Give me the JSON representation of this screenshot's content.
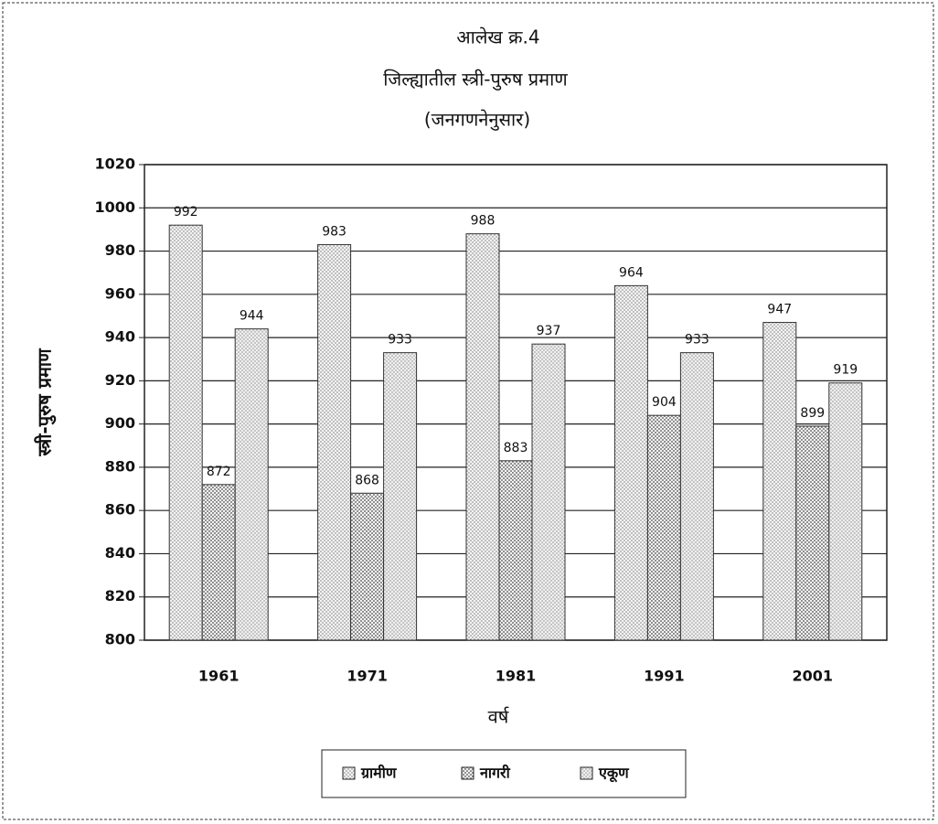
{
  "chart_data": {
    "type": "bar",
    "title": "आलेख क्र.4",
    "subtitle": "जिल्ह्यातील स्त्री-पुरुष प्रमाण",
    "note": "(जनगणनेनुसार)",
    "x_label": "वर्ष",
    "y_label": "स्त्री-पुरुष प्रमाण",
    "categories": [
      "1961",
      "1971",
      "1981",
      "1991",
      "2001"
    ],
    "series": [
      {
        "name": "ग्रामीण",
        "color": "#9a9a9a",
        "values": [
          992,
          983,
          988,
          964,
          947
        ]
      },
      {
        "name": "नागरी",
        "color": "#7d7d7d",
        "values": [
          872,
          868,
          883,
          904,
          899
        ]
      },
      {
        "name": "एकूण",
        "color": "#c4c4c4",
        "values": [
          944,
          933,
          937,
          933,
          919
        ]
      }
    ],
    "ylim": [
      800,
      1020
    ],
    "yticks": [
      800,
      820,
      840,
      860,
      880,
      900,
      920,
      940,
      960,
      980,
      1000,
      1020
    ],
    "grid": true
  }
}
